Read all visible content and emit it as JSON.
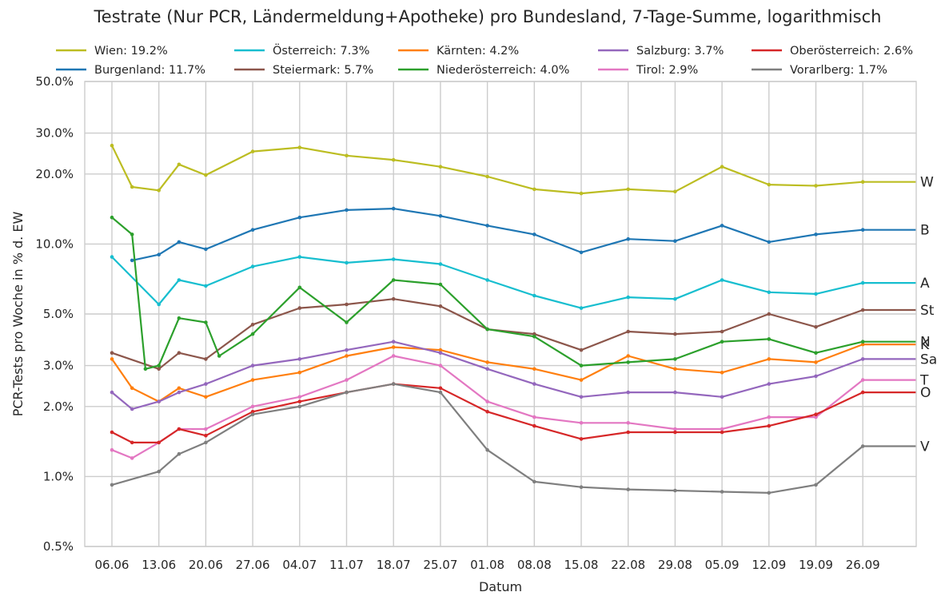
{
  "chart_data": {
    "type": "line",
    "title": "Testrate (Nur PCR, Ländermeldung+Apotheke) pro Bundesland, 7-Tage-Summe, logarithmisch",
    "xlabel": "Datum",
    "ylabel": "PCR-Tests pro Woche in % d. EW",
    "yscale": "log",
    "ylim": [
      0.5,
      50
    ],
    "y_ticks": [
      0.5,
      1,
      2,
      3,
      5,
      10,
      20,
      30,
      50
    ],
    "y_tick_labels": [
      "0.5%",
      "1.0%",
      "2.0%",
      "3.0%",
      "5.0%",
      "10.0%",
      "20.0%",
      "30.0%",
      "50.0%"
    ],
    "x_tick_labels": [
      "06.06",
      "13.06",
      "20.06",
      "27.06",
      "04.07",
      "11.07",
      "18.07",
      "25.07",
      "01.08",
      "08.08",
      "15.08",
      "22.08",
      "29.08",
      "05.09",
      "12.09",
      "19.09",
      "26.09"
    ],
    "grid": true,
    "legend_position": "top",
    "series": [
      {
        "name": "Wien: 19.2%",
        "end_label": "W",
        "color": "#bcbd22",
        "points": [
          [
            "06.06",
            26.5
          ],
          [
            "09.06",
            17.6
          ],
          [
            "13.06",
            17.0
          ],
          [
            "16.06",
            22.0
          ],
          [
            "20.06",
            19.8
          ],
          [
            "27.06",
            25.0
          ],
          [
            "04.07",
            26.0
          ],
          [
            "11.07",
            24.0
          ],
          [
            "18.07",
            23.0
          ],
          [
            "25.07",
            21.5
          ],
          [
            "01.08",
            19.5
          ],
          [
            "08.08",
            17.2
          ],
          [
            "15.08",
            16.5
          ],
          [
            "22.08",
            17.2
          ],
          [
            "29.08",
            16.8
          ],
          [
            "05.09",
            21.5
          ],
          [
            "12.09",
            18.0
          ],
          [
            "19.09",
            17.8
          ],
          [
            "26.09",
            18.5
          ]
        ]
      },
      {
        "name": "Burgenland: 11.7%",
        "end_label": "B",
        "color": "#1f77b4",
        "points": [
          [
            "09.06",
            8.5
          ],
          [
            "13.06",
            9.0
          ],
          [
            "16.06",
            10.2
          ],
          [
            "20.06",
            9.5
          ],
          [
            "27.06",
            11.5
          ],
          [
            "04.07",
            13.0
          ],
          [
            "11.07",
            14.0
          ],
          [
            "18.07",
            14.2
          ],
          [
            "25.07",
            13.2
          ],
          [
            "01.08",
            12.0
          ],
          [
            "08.08",
            11.0
          ],
          [
            "15.08",
            9.2
          ],
          [
            "22.08",
            10.5
          ],
          [
            "29.08",
            10.3
          ],
          [
            "05.09",
            12.0
          ],
          [
            "12.09",
            10.2
          ],
          [
            "19.09",
            11.0
          ],
          [
            "26.09",
            11.5
          ]
        ]
      },
      {
        "name": "Österreich: 7.3%",
        "end_label": "A",
        "color": "#17becf",
        "points": [
          [
            "06.06",
            8.8
          ],
          [
            "13.06",
            5.5
          ],
          [
            "16.06",
            7.0
          ],
          [
            "20.06",
            6.6
          ],
          [
            "27.06",
            8.0
          ],
          [
            "04.07",
            8.8
          ],
          [
            "11.07",
            8.3
          ],
          [
            "18.07",
            8.6
          ],
          [
            "25.07",
            8.2
          ],
          [
            "01.08",
            7.0
          ],
          [
            "08.08",
            6.0
          ],
          [
            "15.08",
            5.3
          ],
          [
            "22.08",
            5.9
          ],
          [
            "29.08",
            5.8
          ],
          [
            "05.09",
            7.0
          ],
          [
            "12.09",
            6.2
          ],
          [
            "19.09",
            6.1
          ],
          [
            "26.09",
            6.8
          ]
        ]
      },
      {
        "name": "Steiermark: 5.7%",
        "end_label": "St",
        "color": "#8c564b",
        "points": [
          [
            "06.06",
            3.4
          ],
          [
            "13.06",
            2.9
          ],
          [
            "16.06",
            3.4
          ],
          [
            "20.06",
            3.2
          ],
          [
            "27.06",
            4.5
          ],
          [
            "04.07",
            5.3
          ],
          [
            "11.07",
            5.5
          ],
          [
            "18.07",
            5.8
          ],
          [
            "25.07",
            5.4
          ],
          [
            "01.08",
            4.3
          ],
          [
            "08.08",
            4.1
          ],
          [
            "15.08",
            3.5
          ],
          [
            "22.08",
            4.2
          ],
          [
            "29.08",
            4.1
          ],
          [
            "05.09",
            4.2
          ],
          [
            "12.09",
            5.0
          ],
          [
            "19.09",
            4.4
          ],
          [
            "26.09",
            5.2
          ]
        ]
      },
      {
        "name": "Kärnten: 4.2%",
        "end_label": "K",
        "color": "#ff7f0e",
        "points": [
          [
            "06.06",
            3.2
          ],
          [
            "09.06",
            2.4
          ],
          [
            "13.06",
            2.1
          ],
          [
            "16.06",
            2.4
          ],
          [
            "20.06",
            2.2
          ],
          [
            "27.06",
            2.6
          ],
          [
            "04.07",
            2.8
          ],
          [
            "11.07",
            3.3
          ],
          [
            "18.07",
            3.6
          ],
          [
            "25.07",
            3.5
          ],
          [
            "01.08",
            3.1
          ],
          [
            "08.08",
            2.9
          ],
          [
            "15.08",
            2.6
          ],
          [
            "22.08",
            3.3
          ],
          [
            "29.08",
            2.9
          ],
          [
            "05.09",
            2.8
          ],
          [
            "12.09",
            3.2
          ],
          [
            "19.09",
            3.1
          ],
          [
            "26.09",
            3.7
          ]
        ]
      },
      {
        "name": "Niederösterreich: 4.0%",
        "end_label": "N",
        "color": "#2ca02c",
        "points": [
          [
            "06.06",
            13.0
          ],
          [
            "09.06",
            11.0
          ],
          [
            "11.06",
            2.9
          ],
          [
            "13.06",
            3.0
          ],
          [
            "16.06",
            4.8
          ],
          [
            "20.06",
            4.6
          ],
          [
            "22.06",
            3.3
          ],
          [
            "27.06",
            4.1
          ],
          [
            "04.07",
            6.5
          ],
          [
            "11.07",
            4.6
          ],
          [
            "18.07",
            7.0
          ],
          [
            "25.07",
            6.7
          ],
          [
            "01.08",
            4.3
          ],
          [
            "08.08",
            4.0
          ],
          [
            "15.08",
            3.0
          ],
          [
            "22.08",
            3.1
          ],
          [
            "29.08",
            3.2
          ],
          [
            "05.09",
            3.8
          ],
          [
            "12.09",
            3.9
          ],
          [
            "19.09",
            3.4
          ],
          [
            "26.09",
            3.8
          ]
        ]
      },
      {
        "name": "Salzburg: 3.7%",
        "end_label": "Sa",
        "color": "#9467bd",
        "points": [
          [
            "06.06",
            2.3
          ],
          [
            "09.06",
            1.95
          ],
          [
            "13.06",
            2.1
          ],
          [
            "16.06",
            2.3
          ],
          [
            "20.06",
            2.5
          ],
          [
            "27.06",
            3.0
          ],
          [
            "04.07",
            3.2
          ],
          [
            "11.07",
            3.5
          ],
          [
            "18.07",
            3.8
          ],
          [
            "25.07",
            3.4
          ],
          [
            "01.08",
            2.9
          ],
          [
            "08.08",
            2.5
          ],
          [
            "15.08",
            2.2
          ],
          [
            "22.08",
            2.3
          ],
          [
            "29.08",
            2.3
          ],
          [
            "05.09",
            2.2
          ],
          [
            "12.09",
            2.5
          ],
          [
            "19.09",
            2.7
          ],
          [
            "26.09",
            3.2
          ]
        ]
      },
      {
        "name": "Tirol: 2.9%",
        "end_label": "T",
        "color": "#e377c2",
        "points": [
          [
            "06.06",
            1.3
          ],
          [
            "09.06",
            1.2
          ],
          [
            "13.06",
            1.4
          ],
          [
            "16.06",
            1.6
          ],
          [
            "20.06",
            1.6
          ],
          [
            "27.06",
            2.0
          ],
          [
            "04.07",
            2.2
          ],
          [
            "11.07",
            2.6
          ],
          [
            "18.07",
            3.3
          ],
          [
            "25.07",
            3.0
          ],
          [
            "01.08",
            2.1
          ],
          [
            "08.08",
            1.8
          ],
          [
            "15.08",
            1.7
          ],
          [
            "22.08",
            1.7
          ],
          [
            "29.08",
            1.6
          ],
          [
            "05.09",
            1.6
          ],
          [
            "12.09",
            1.8
          ],
          [
            "19.09",
            1.8
          ],
          [
            "26.09",
            2.6
          ]
        ]
      },
      {
        "name": "Oberösterreich: 2.6%",
        "end_label": "O",
        "color": "#d62728",
        "points": [
          [
            "06.06",
            1.55
          ],
          [
            "09.06",
            1.4
          ],
          [
            "13.06",
            1.4
          ],
          [
            "16.06",
            1.6
          ],
          [
            "20.06",
            1.5
          ],
          [
            "27.06",
            1.9
          ],
          [
            "04.07",
            2.1
          ],
          [
            "11.07",
            2.3
          ],
          [
            "18.07",
            2.5
          ],
          [
            "25.07",
            2.4
          ],
          [
            "01.08",
            1.9
          ],
          [
            "08.08",
            1.65
          ],
          [
            "15.08",
            1.45
          ],
          [
            "22.08",
            1.55
          ],
          [
            "29.08",
            1.55
          ],
          [
            "05.09",
            1.55
          ],
          [
            "12.09",
            1.65
          ],
          [
            "19.09",
            1.85
          ],
          [
            "26.09",
            2.3
          ]
        ]
      },
      {
        "name": "Vorarlberg: 1.7%",
        "end_label": "V",
        "color": "#7f7f7f",
        "points": [
          [
            "06.06",
            0.92
          ],
          [
            "13.06",
            1.05
          ],
          [
            "16.06",
            1.25
          ],
          [
            "20.06",
            1.4
          ],
          [
            "27.06",
            1.85
          ],
          [
            "04.07",
            2.0
          ],
          [
            "11.07",
            2.3
          ],
          [
            "18.07",
            2.5
          ],
          [
            "25.07",
            2.3
          ],
          [
            "01.08",
            1.3
          ],
          [
            "08.08",
            0.95
          ],
          [
            "15.08",
            0.9
          ],
          [
            "22.08",
            0.88
          ],
          [
            "29.08",
            0.87
          ],
          [
            "05.09",
            0.86
          ],
          [
            "12.09",
            0.85
          ],
          [
            "19.09",
            0.92
          ],
          [
            "26.09",
            1.35
          ]
        ]
      }
    ]
  }
}
